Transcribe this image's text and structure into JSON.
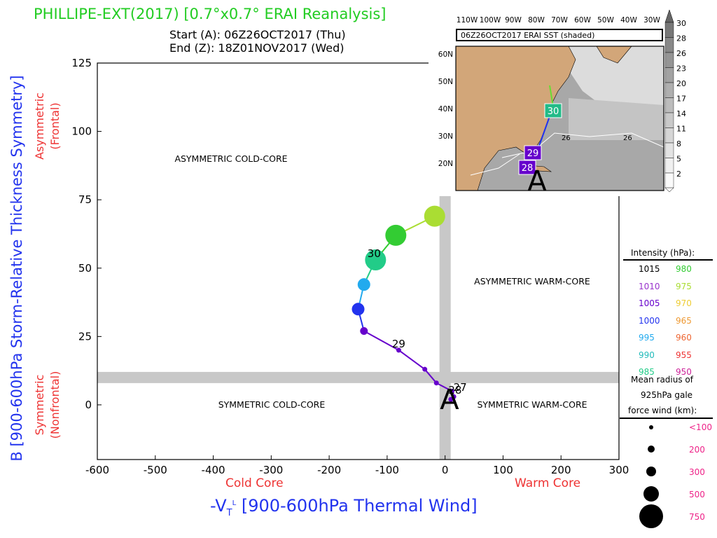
{
  "titles": {
    "main": "PHILLIPE-EXT(2017) [0.7°x0.7° ERAI Reanalysis]",
    "start": "Start (A): 06Z26OCT2017 (Thu)",
    "end": "End (Z): 18Z01NOV2017 (Wed)"
  },
  "quadrants": {
    "asym_cold": "ASYMMETRIC COLD-CORE",
    "asym_warm": "ASYMMETRIC WARM-CORE",
    "sym_cold": "SYMMETRIC COLD-CORE",
    "sym_warm": "SYMMETRIC WARM-CORE"
  },
  "axis_side_labels": {
    "asym": "Asymmetric",
    "frontal": "(Frontal)",
    "sym": "Symmetric",
    "nonfrontal": "(Nonfrontal)",
    "cold_core": "Cold Core",
    "warm_core": "Warm Core"
  },
  "legend": {
    "intensity_title": "Intensity (hPa):",
    "intensity": [
      {
        "left": "1015",
        "left_color": "#000000",
        "right": "980",
        "right_color": "#33cc33"
      },
      {
        "left": "1010",
        "left_color": "#9933cc",
        "right": "975",
        "right_color": "#aadd33"
      },
      {
        "left": "1005",
        "left_color": "#6600cc",
        "right": "970",
        "right_color": "#eecc33"
      },
      {
        "left": "1000",
        "left_color": "#2233ee",
        "right": "965",
        "right_color": "#ee9933"
      },
      {
        "left": "995",
        "left_color": "#22aaee",
        "right": "960",
        "right_color": "#ee6633"
      },
      {
        "left": "990",
        "left_color": "#22bbbb",
        "right": "955",
        "right_color": "#ee3333"
      },
      {
        "left": "985",
        "left_color": "#22cc88",
        "right": "950",
        "right_color": "#cc2299"
      }
    ],
    "radius_title_1": "Mean radius of",
    "radius_title_2": "925hPa gale",
    "radius_title_3": "force wind (km):",
    "radius": [
      "<100",
      "200",
      "300",
      "500",
      "750"
    ],
    "radius_color": "#ee2288"
  },
  "inset": {
    "title": "06Z26OCT2017 ERAI SST (shaded)",
    "lon_labels": [
      "110W",
      "100W",
      "90W",
      "80W",
      "70W",
      "60W",
      "50W",
      "40W",
      "30W"
    ],
    "lat_labels": [
      "60N",
      "50N",
      "40N",
      "30N",
      "20N"
    ],
    "colorbar": [
      "30",
      "28",
      "26",
      "23",
      "20",
      "17",
      "14",
      "11",
      "8",
      "5",
      "2"
    ],
    "isotherm_labels": [
      "26",
      "26"
    ],
    "track_labels": [
      "30",
      "29",
      "28"
    ],
    "start_marker": "A"
  },
  "chart_data": {
    "type": "scatter",
    "title": "PHILLIPE-EXT(2017) [0.7°x0.7° ERAI Reanalysis]",
    "xlabel": "-V_T^L [900-600hPa Thermal Wind]",
    "ylabel": "B [900-600hPa Storm-Relative Thickness Symmetry]",
    "xlim": [
      -600,
      300
    ],
    "ylim": [
      -20,
      125
    ],
    "xticks": [
      -600,
      -500,
      -400,
      -300,
      -200,
      -100,
      0,
      100,
      200,
      300
    ],
    "yticks": [
      0,
      25,
      50,
      75,
      100,
      125
    ],
    "x_tick_labels": [
      "-600",
      "-500",
      "-400",
      "-300",
      "-200",
      "-100",
      "0",
      "100",
      "200",
      "300"
    ],
    "y_tick_labels": [
      "0",
      "25",
      "50",
      "75",
      "100",
      "125"
    ],
    "grid": false,
    "reference_band": {
      "x": 0,
      "y": 10
    },
    "start_label": "A",
    "points": [
      {
        "x": 10,
        "y": 2,
        "pressure": 1005,
        "color": "#6600cc",
        "size": "small"
      },
      {
        "x": 15,
        "y": 3,
        "pressure": 1005,
        "color": "#6600cc",
        "size": "small"
      },
      {
        "x": 12,
        "y": 5,
        "pressure": 1005,
        "color": "#6600cc",
        "size": "small"
      },
      {
        "x": -15,
        "y": 8,
        "pressure": 1005,
        "color": "#6600cc",
        "size": "small"
      },
      {
        "x": -35,
        "y": 13,
        "pressure": 1005,
        "color": "#6600cc",
        "size": "small"
      },
      {
        "x": -80,
        "y": 20,
        "pressure": 1005,
        "color": "#6600cc",
        "size": "small"
      },
      {
        "x": -140,
        "y": 27,
        "pressure": 1005,
        "color": "#6600cc",
        "size": "medium"
      },
      {
        "x": -150,
        "y": 35,
        "pressure": 1000,
        "color": "#2233ee",
        "size": "large"
      },
      {
        "x": -140,
        "y": 44,
        "pressure": 995,
        "color": "#22aaee",
        "size": "large"
      },
      {
        "x": -120,
        "y": 53,
        "pressure": 985,
        "color": "#22cc88",
        "size": "xlarge"
      },
      {
        "x": -85,
        "y": 62,
        "pressure": 980,
        "color": "#33cc33",
        "size": "xlarge"
      },
      {
        "x": -18,
        "y": 69,
        "pressure": 975,
        "color": "#aadd33",
        "size": "xlarge"
      }
    ],
    "day_labels": [
      {
        "text": "30",
        "x": -120,
        "y": 53
      },
      {
        "text": "29",
        "x": -80,
        "y": 20
      },
      {
        "text": "28",
        "x": 10,
        "y": 2
      },
      {
        "text": "27",
        "x": 15,
        "y": 3
      }
    ]
  }
}
